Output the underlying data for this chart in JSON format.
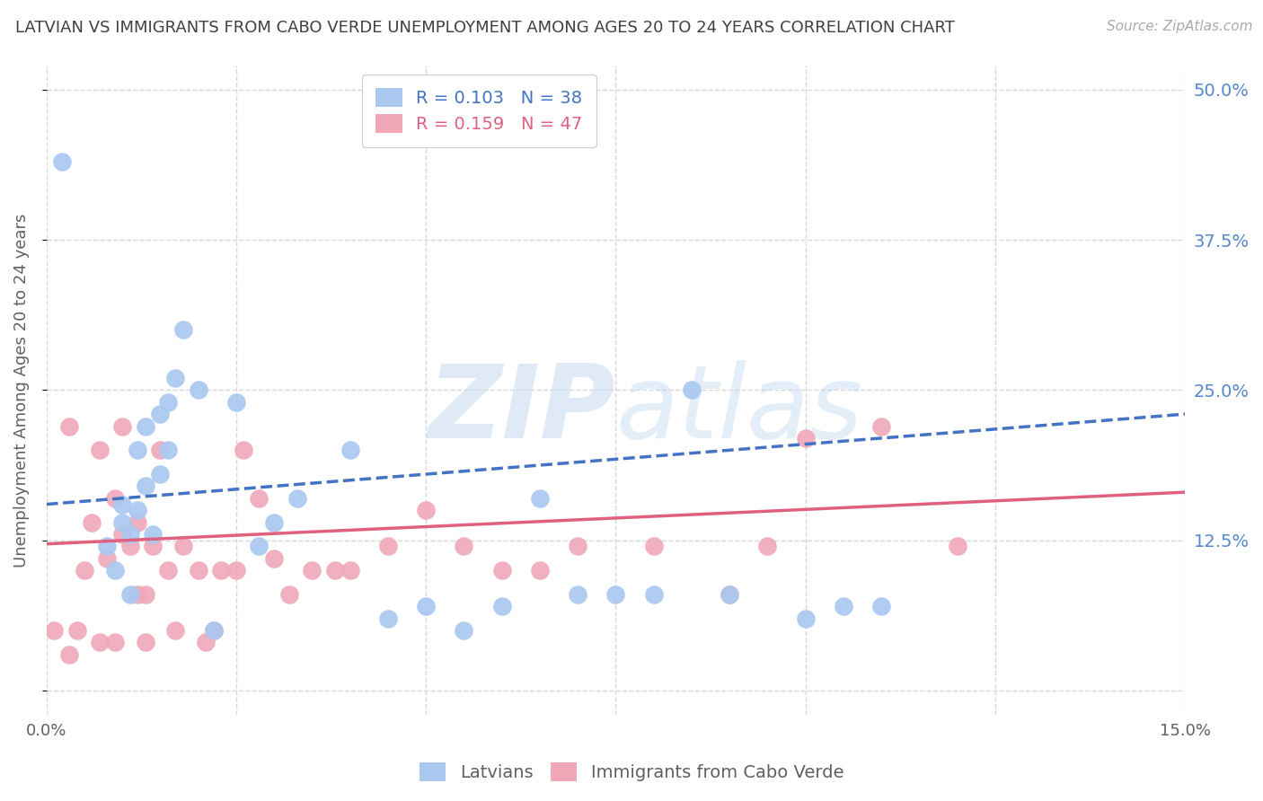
{
  "title": "LATVIAN VS IMMIGRANTS FROM CABO VERDE UNEMPLOYMENT AMONG AGES 20 TO 24 YEARS CORRELATION CHART",
  "source": "Source: ZipAtlas.com",
  "ylabel": "Unemployment Among Ages 20 to 24 years",
  "xlim": [
    0.0,
    0.15
  ],
  "ylim": [
    -0.02,
    0.52
  ],
  "latvian_R": 0.103,
  "latvian_N": 38,
  "cabo_verde_R": 0.159,
  "cabo_verde_N": 47,
  "latvian_color": "#a8c8f0",
  "cabo_verde_color": "#f0a8b8",
  "latvian_line_color": "#4472c4",
  "cabo_verde_line_color": "#e06080",
  "right_axis_color": "#5588cc",
  "background_color": "#ffffff",
  "grid_color": "#d8d8d8",
  "title_color": "#404040",
  "axis_label_color": "#606060",
  "latvian_x": [
    0.002,
    0.008,
    0.009,
    0.01,
    0.01,
    0.011,
    0.011,
    0.012,
    0.012,
    0.013,
    0.013,
    0.014,
    0.015,
    0.015,
    0.016,
    0.016,
    0.017,
    0.018,
    0.02,
    0.022,
    0.025,
    0.028,
    0.03,
    0.033,
    0.055,
    0.065,
    0.085,
    0.1,
    0.105,
    0.11,
    0.04,
    0.045,
    0.05,
    0.06,
    0.07,
    0.075,
    0.08,
    0.09
  ],
  "latvian_y": [
    0.44,
    0.12,
    0.1,
    0.14,
    0.155,
    0.13,
    0.08,
    0.15,
    0.2,
    0.22,
    0.17,
    0.13,
    0.23,
    0.18,
    0.2,
    0.24,
    0.26,
    0.3,
    0.25,
    0.05,
    0.24,
    0.12,
    0.14,
    0.16,
    0.05,
    0.16,
    0.25,
    0.06,
    0.07,
    0.07,
    0.2,
    0.06,
    0.07,
    0.07,
    0.08,
    0.08,
    0.08,
    0.08
  ],
  "cabo_verde_x": [
    0.001,
    0.003,
    0.005,
    0.006,
    0.007,
    0.008,
    0.009,
    0.01,
    0.01,
    0.011,
    0.012,
    0.012,
    0.013,
    0.014,
    0.015,
    0.016,
    0.018,
    0.02,
    0.022,
    0.023,
    0.025,
    0.026,
    0.028,
    0.03,
    0.032,
    0.035,
    0.038,
    0.04,
    0.045,
    0.05,
    0.055,
    0.06,
    0.065,
    0.07,
    0.08,
    0.09,
    0.095,
    0.1,
    0.11,
    0.12,
    0.003,
    0.004,
    0.007,
    0.009,
    0.013,
    0.017,
    0.021
  ],
  "cabo_verde_y": [
    0.05,
    0.22,
    0.1,
    0.14,
    0.2,
    0.11,
    0.16,
    0.13,
    0.22,
    0.12,
    0.08,
    0.14,
    0.08,
    0.12,
    0.2,
    0.1,
    0.12,
    0.1,
    0.05,
    0.1,
    0.1,
    0.2,
    0.16,
    0.11,
    0.08,
    0.1,
    0.1,
    0.1,
    0.12,
    0.15,
    0.12,
    0.1,
    0.1,
    0.12,
    0.12,
    0.08,
    0.12,
    0.21,
    0.22,
    0.12,
    0.03,
    0.05,
    0.04,
    0.04,
    0.04,
    0.05,
    0.04
  ]
}
